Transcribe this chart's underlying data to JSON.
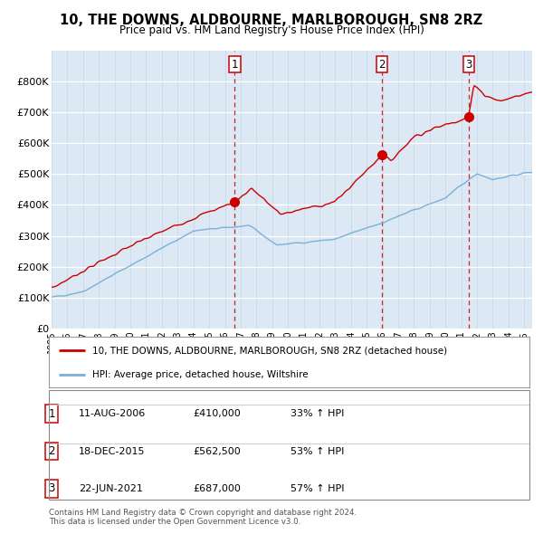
{
  "title": "10, THE DOWNS, ALDBOURNE, MARLBOROUGH, SN8 2RZ",
  "subtitle": "Price paid vs. HM Land Registry's House Price Index (HPI)",
  "plot_bg_color": "#dce9f5",
  "ylim": [
    0,
    900000
  ],
  "yticks": [
    0,
    100000,
    200000,
    300000,
    400000,
    500000,
    600000,
    700000,
    800000
  ],
  "ytick_labels": [
    "£0",
    "£100K",
    "£200K",
    "£300K",
    "£400K",
    "£500K",
    "£600K",
    "£700K",
    "£800K"
  ],
  "hpi_color": "#7ab0d8",
  "price_color": "#cc0000",
  "transactions": [
    {
      "date": 2006.62,
      "price": 410000,
      "label": "1"
    },
    {
      "date": 2015.96,
      "price": 562500,
      "label": "2"
    },
    {
      "date": 2021.47,
      "price": 687000,
      "label": "3"
    }
  ],
  "legend_price_label": "10, THE DOWNS, ALDBOURNE, MARLBOROUGH, SN8 2RZ (detached house)",
  "legend_hpi_label": "HPI: Average price, detached house, Wiltshire",
  "table_rows": [
    {
      "num": "1",
      "date": "11-AUG-2006",
      "price": "£410,000",
      "pct": "33% ↑ HPI"
    },
    {
      "num": "2",
      "date": "18-DEC-2015",
      "price": "£562,500",
      "pct": "53% ↑ HPI"
    },
    {
      "num": "3",
      "date": "22-JUN-2021",
      "price": "£687,000",
      "pct": "57% ↑ HPI"
    }
  ],
  "footer": "Contains HM Land Registry data © Crown copyright and database right 2024.\nThis data is licensed under the Open Government Licence v3.0.",
  "xmin": 1995.0,
  "xmax": 2025.5
}
